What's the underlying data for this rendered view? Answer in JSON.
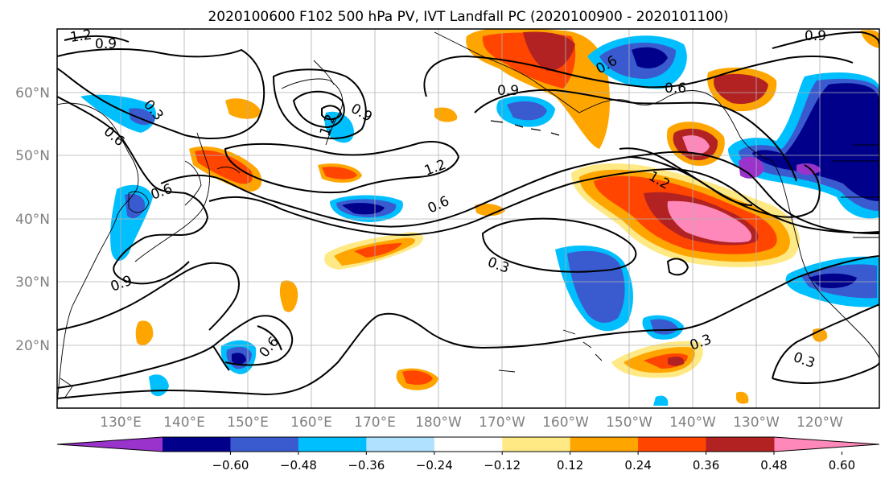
{
  "title": "2020100600 F102 500 hPa PV, IVT Landfall PC (2020100900 - 2020101100)",
  "map": {
    "lon_labels": [
      "130°E",
      "140°E",
      "150°E",
      "160°E",
      "170°E",
      "180°W",
      "170°W",
      "160°W",
      "150°W",
      "140°W",
      "130°W",
      "120°W"
    ],
    "lat_labels": [
      "60°N",
      "50°N",
      "40°N",
      "30°N",
      "20°N"
    ],
    "contour_labels": [
      "1.2",
      "0.9",
      "0.3",
      "0.6",
      "0.9",
      "1.2",
      "0.9",
      "0.6",
      "0.6",
      "1.2",
      "1.2",
      "0.6",
      "0.3",
      "0.9",
      "0.6",
      "0.3",
      "0.3",
      "0.6",
      "0.9"
    ],
    "label_color": "#808080"
  },
  "colorbar": {
    "colors": [
      "#9933cc",
      "#00008b",
      "#3a5bd0",
      "#00bfff",
      "#b0e2ff",
      "#ffffff",
      "#ffe985",
      "#ffa500",
      "#ff4500",
      "#b22222",
      "#ff88bb"
    ],
    "tick_labels": [
      "−0.60",
      "−0.48",
      "−0.36",
      "−0.24",
      "−0.12",
      "0.12",
      "0.24",
      "0.36",
      "0.48",
      "0.60"
    ]
  }
}
